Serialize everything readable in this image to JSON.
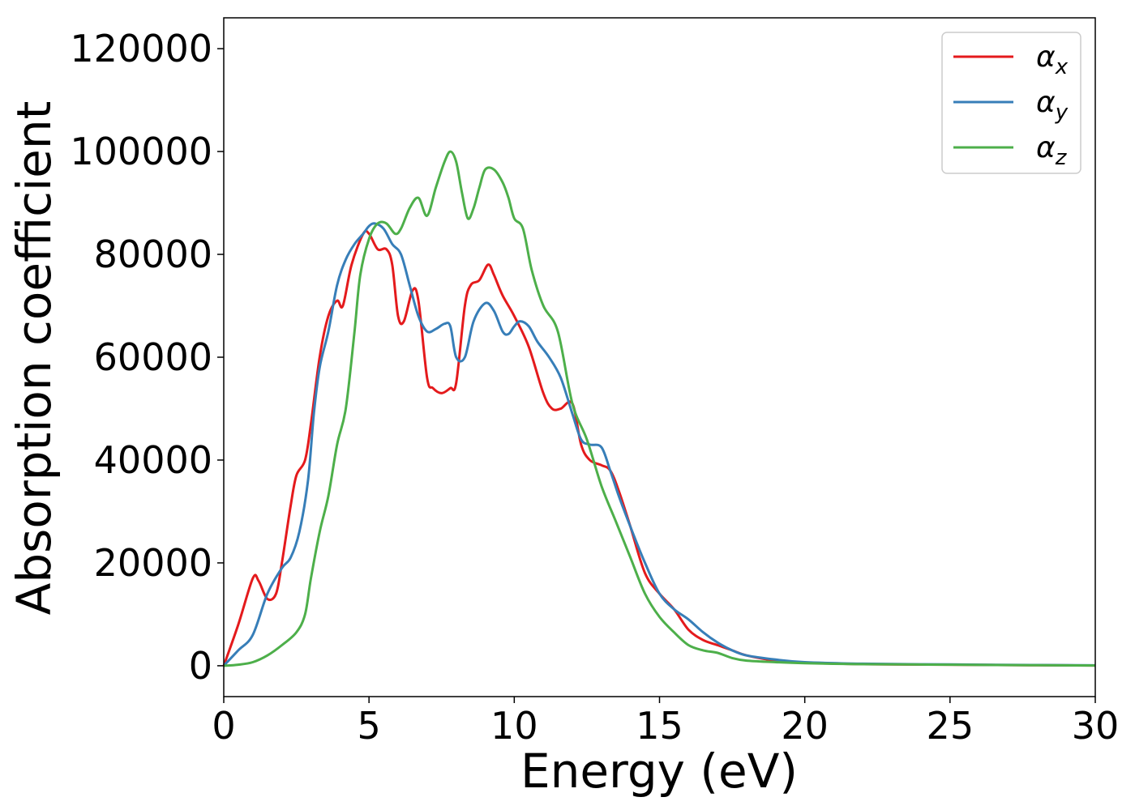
{
  "chart_data": {
    "type": "line",
    "title": "",
    "xlabel": "Energy (eV)",
    "ylabel": "Absorption coefficient",
    "xlim": [
      0,
      30
    ],
    "ylim": [
      -6000,
      126000
    ],
    "xticks": [
      0,
      5,
      10,
      15,
      20,
      25,
      30
    ],
    "yticks": [
      0,
      20000,
      40000,
      60000,
      80000,
      100000,
      120000
    ],
    "grid": false,
    "legend_position": "top-right",
    "series": [
      {
        "name": "α",
        "sub": "x",
        "color": "#e41a1c",
        "x": [
          0,
          0.5,
          1.0,
          1.2,
          1.5,
          1.8,
          2.0,
          2.3,
          2.5,
          2.8,
          3.0,
          3.3,
          3.6,
          3.9,
          4.1,
          4.4,
          4.8,
          5.0,
          5.3,
          5.6,
          5.8,
          6.0,
          6.2,
          6.5,
          6.7,
          7.0,
          7.2,
          7.5,
          7.8,
          8.0,
          8.3,
          8.5,
          8.8,
          9.1,
          9.3,
          9.6,
          10.0,
          10.5,
          11.0,
          11.3,
          11.6,
          12.0,
          12.3,
          12.6,
          13.0,
          13.3,
          13.6,
          14.0,
          14.5,
          15.0,
          15.5,
          16.0,
          16.5,
          17.0,
          17.5,
          18.0,
          19.0,
          20.0,
          22.0,
          25.0,
          28.0,
          30.0
        ],
        "y": [
          0,
          8000,
          17000,
          16500,
          13000,
          14000,
          20000,
          31000,
          37000,
          40000,
          47000,
          60000,
          68000,
          71000,
          70000,
          78000,
          84000,
          84000,
          81000,
          81000,
          78000,
          68000,
          67000,
          73000,
          71000,
          56000,
          54000,
          53000,
          54000,
          55000,
          70000,
          74000,
          75000,
          78000,
          76000,
          72000,
          68000,
          62000,
          53000,
          50000,
          50000,
          51000,
          43000,
          40000,
          39000,
          38000,
          34000,
          27000,
          18000,
          14000,
          11000,
          7000,
          5000,
          4000,
          3000,
          2000,
          1000,
          600,
          300,
          200,
          100,
          50
        ]
      },
      {
        "name": "α",
        "sub": "y",
        "color": "#377eb8",
        "x": [
          0,
          0.5,
          1.0,
          1.5,
          2.0,
          2.3,
          2.6,
          2.9,
          3.1,
          3.3,
          3.6,
          3.9,
          4.2,
          4.5,
          4.8,
          5.0,
          5.2,
          5.5,
          5.8,
          6.1,
          6.4,
          6.7,
          7.0,
          7.3,
          7.6,
          7.8,
          8.0,
          8.3,
          8.6,
          9.0,
          9.3,
          9.6,
          9.8,
          10.0,
          10.2,
          10.5,
          10.8,
          11.2,
          11.6,
          12.0,
          12.3,
          12.6,
          13.0,
          13.3,
          13.6,
          14.0,
          14.5,
          15.0,
          15.5,
          16.0,
          16.5,
          17.0,
          17.5,
          18.0,
          19.0,
          20.0,
          22.0,
          25.0,
          28.0,
          30.0
        ],
        "y": [
          0,
          3000,
          6000,
          14000,
          19000,
          21000,
          26000,
          36000,
          49000,
          58000,
          65000,
          74000,
          79000,
          82000,
          84000,
          85500,
          86000,
          85000,
          82000,
          80000,
          74000,
          68000,
          65000,
          65500,
          66500,
          66000,
          60000,
          60000,
          67000,
          70500,
          69000,
          65000,
          64500,
          66000,
          67000,
          66000,
          63000,
          60000,
          56000,
          49000,
          44000,
          43000,
          42500,
          38000,
          33000,
          27000,
          20000,
          14000,
          11000,
          9000,
          6500,
          4500,
          3000,
          2000,
          1200,
          700,
          400,
          250,
          150,
          80
        ]
      },
      {
        "name": "α",
        "sub": "z",
        "color": "#4daf4a",
        "x": [
          0,
          0.5,
          1.0,
          1.5,
          2.0,
          2.5,
          2.8,
          3.0,
          3.3,
          3.6,
          3.9,
          4.2,
          4.5,
          4.7,
          5.0,
          5.3,
          5.6,
          5.9,
          6.1,
          6.4,
          6.7,
          7.0,
          7.3,
          7.6,
          7.8,
          8.0,
          8.2,
          8.4,
          8.6,
          8.8,
          9.0,
          9.3,
          9.6,
          9.8,
          10.0,
          10.3,
          10.6,
          11.0,
          11.5,
          12.0,
          12.5,
          13.0,
          13.5,
          14.0,
          14.5,
          15.0,
          15.5,
          16.0,
          16.5,
          17.0,
          17.5,
          18.0,
          19.0,
          20.0,
          22.0,
          25.0,
          28.0,
          30.0
        ],
        "y": [
          0,
          200,
          700,
          2000,
          4000,
          6500,
          10000,
          17000,
          26000,
          33000,
          43000,
          50000,
          65000,
          76000,
          83000,
          86000,
          86000,
          84000,
          85000,
          89000,
          91000,
          87500,
          93000,
          98000,
          100000,
          98000,
          92000,
          87000,
          89000,
          93000,
          96500,
          96500,
          94000,
          91000,
          87000,
          85000,
          77000,
          70000,
          65000,
          51000,
          44000,
          35000,
          28000,
          21000,
          14000,
          9500,
          6500,
          4000,
          3000,
          2500,
          1500,
          1000,
          700,
          500,
          300,
          200,
          100,
          50
        ]
      }
    ]
  }
}
